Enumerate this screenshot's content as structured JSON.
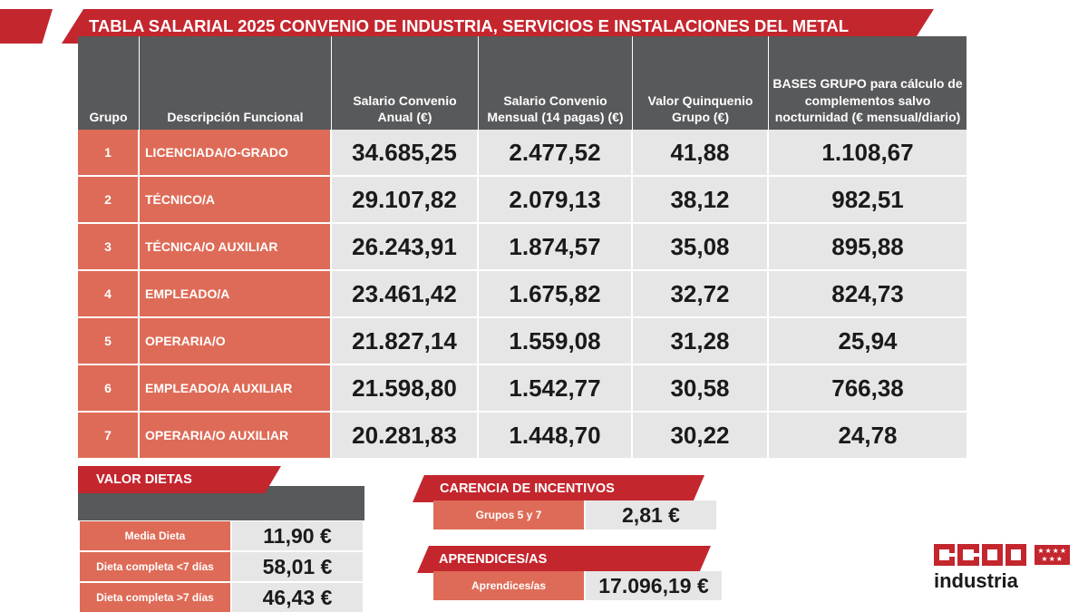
{
  "title": "TABLA SALARIAL 2025 CONVENIO DE INDUSTRIA, SERVICIOS E INSTALACIONES DEL METAL",
  "table": {
    "headers": {
      "grupo": "Grupo",
      "descripcion": "Descripción Funcional",
      "anual": "Salario Convenio Anual (€)",
      "mensual": "Salario Convenio Mensual (14 pagas) (€)",
      "quinquenio": "Valor Quinquenio Grupo (€)",
      "bases": "BASES GRUPO para cálculo de complementos salvo nocturnidad (€ mensual/diario)"
    },
    "rows": [
      {
        "grupo": "1",
        "descripcion": "LICENCIADA/O-GRADO",
        "anual": "34.685,25",
        "mensual": "2.477,52",
        "quinquenio": "41,88",
        "bases": "1.108,67"
      },
      {
        "grupo": "2",
        "descripcion": "TÉCNICO/A",
        "anual": "29.107,82",
        "mensual": "2.079,13",
        "quinquenio": "38,12",
        "bases": "982,51"
      },
      {
        "grupo": "3",
        "descripcion": "TÉCNICA/O AUXILIAR",
        "anual": "26.243,91",
        "mensual": "1.874,57",
        "quinquenio": "35,08",
        "bases": "895,88"
      },
      {
        "grupo": "4",
        "descripcion": "EMPLEADO/A",
        "anual": "23.461,42",
        "mensual": "1.675,82",
        "quinquenio": "32,72",
        "bases": "824,73"
      },
      {
        "grupo": "5",
        "descripcion": "OPERARIA/O",
        "anual": "21.827,14",
        "mensual": "1.559,08",
        "quinquenio": "31,28",
        "bases": "25,94"
      },
      {
        "grupo": "6",
        "descripcion": "EMPLEADO/A AUXILIAR",
        "anual": "21.598,80",
        "mensual": "1.542,77",
        "quinquenio": "30,58",
        "bases": "766,38"
      },
      {
        "grupo": "7",
        "descripcion": "OPERARIA/O AUXILIAR",
        "anual": "20.281,83",
        "mensual": "1.448,70",
        "quinquenio": "30,22",
        "bases": "24,78"
      }
    ]
  },
  "dietas": {
    "title": "VALOR DIETAS",
    "items": [
      {
        "label": "Media Dieta",
        "value": "11,90 €"
      },
      {
        "label": "Dieta completa <7 días",
        "value": "58,01 €"
      },
      {
        "label": "Dieta completa >7 días",
        "value": "46,43 €"
      }
    ]
  },
  "carencia": {
    "title": "CARENCIA DE INCENTIVOS",
    "label": "Grupos 5 y 7",
    "value": "2,81 €"
  },
  "aprendices": {
    "title": "APRENDICES/AS",
    "label": "Aprendices/as",
    "value": "17.096,19 €"
  },
  "logo": {
    "letters": [
      "C",
      "C",
      "O",
      "O"
    ],
    "stars": "★★★★\n★★★",
    "text": "industria"
  },
  "colors": {
    "brand_red": "#c4262e",
    "salmon": "#de6b57",
    "header_grey": "#58595b",
    "cell_grey": "#e6e6e6"
  }
}
